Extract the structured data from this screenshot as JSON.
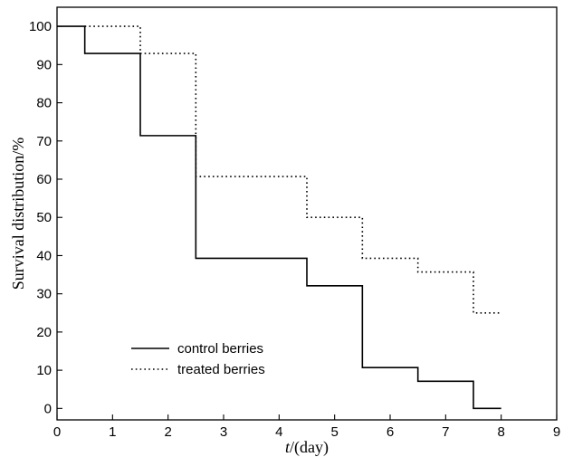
{
  "chart_data": {
    "type": "line",
    "step": true,
    "xlabel_italic": "t",
    "xlabel_rest": "/(day)",
    "ylabel": "Survival distribution/%",
    "xlim": [
      0,
      9
    ],
    "ylim": [
      -3,
      105
    ],
    "x_ticks": [
      0,
      1,
      2,
      3,
      4,
      5,
      6,
      7,
      8,
      9
    ],
    "y_ticks": [
      0,
      10,
      20,
      30,
      40,
      50,
      60,
      70,
      80,
      90,
      100
    ],
    "grid": false,
    "legend_position": "bottom-left",
    "series": [
      {
        "name": "control berries",
        "style": "solid",
        "points": [
          [
            0,
            100
          ],
          [
            0.5,
            100
          ],
          [
            0.5,
            92.9
          ],
          [
            1.5,
            92.9
          ],
          [
            1.5,
            71.4
          ],
          [
            2.5,
            71.4
          ],
          [
            2.5,
            39.3
          ],
          [
            4.5,
            39.3
          ],
          [
            4.5,
            32.1
          ],
          [
            5.5,
            32.1
          ],
          [
            5.5,
            10.7
          ],
          [
            6.5,
            10.7
          ],
          [
            6.5,
            7.1
          ],
          [
            7.5,
            7.1
          ],
          [
            7.5,
            0
          ],
          [
            8,
            0
          ]
        ]
      },
      {
        "name": "treated berries",
        "style": "dotted",
        "points": [
          [
            0.5,
            100
          ],
          [
            1.5,
            100
          ],
          [
            1.5,
            92.9
          ],
          [
            2.5,
            92.9
          ],
          [
            2.5,
            60.7
          ],
          [
            4.5,
            60.7
          ],
          [
            4.5,
            50
          ],
          [
            5.5,
            50
          ],
          [
            5.5,
            39.3
          ],
          [
            6.5,
            39.3
          ],
          [
            6.5,
            35.7
          ],
          [
            7.5,
            35.7
          ],
          [
            7.5,
            25
          ],
          [
            8,
            25
          ]
        ]
      }
    ]
  }
}
